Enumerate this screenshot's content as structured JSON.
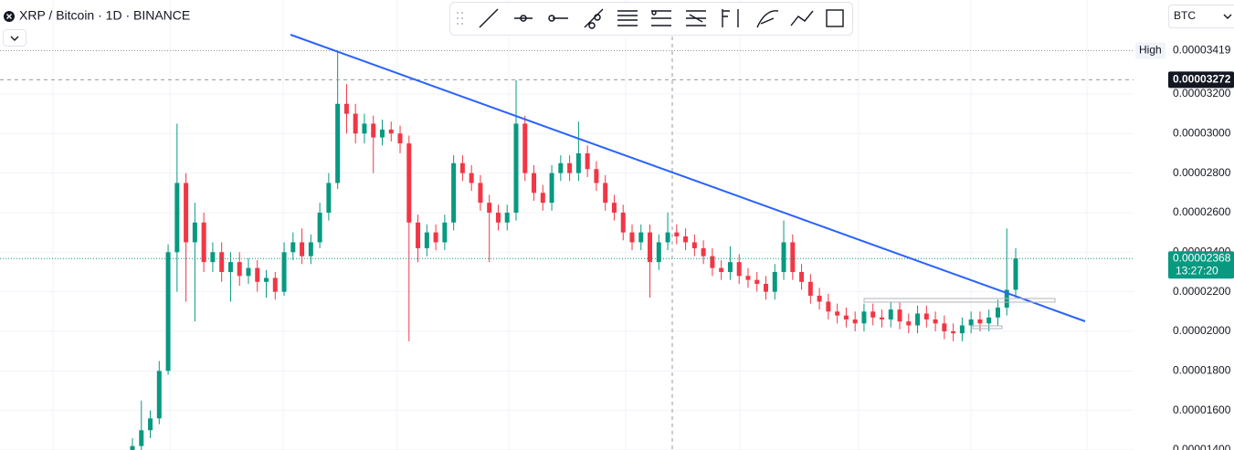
{
  "header": {
    "title": "XRP / Bitcoin · 1D · BINANCE"
  },
  "currency": "BTC",
  "chart_data": {
    "type": "candlestick",
    "open": [
      1.38e-05,
      1.42e-05,
      1.5e-05,
      1.56e-05,
      1.8e-05,
      2.4e-05,
      2.75e-05,
      2.45e-05,
      2.55e-05,
      2.35e-05,
      2.4e-05,
      2.3e-05,
      2.35e-05,
      2.28e-05,
      2.32e-05,
      2.25e-05,
      2.27e-05,
      2.2e-05,
      2.4e-05,
      2.45e-05,
      2.38e-05,
      2.45e-05,
      2.6e-05,
      2.75e-05,
      3.15e-05,
      3.1e-05,
      3e-05,
      3.05e-05,
      2.98e-05,
      3.02e-05,
      3e-05,
      2.95e-05,
      2.55e-05,
      2.42e-05,
      2.5e-05,
      2.45e-05,
      2.55e-05,
      2.85e-05,
      2.8e-05,
      2.75e-05,
      2.65e-05,
      2.6e-05,
      2.55e-05,
      2.6e-05,
      3.05e-05,
      2.8e-05,
      2.7e-05,
      2.65e-05,
      2.8e-05,
      2.85e-05,
      2.8e-05,
      2.9e-05,
      2.82e-05,
      2.75e-05,
      2.65e-05,
      2.6e-05,
      2.5e-05,
      2.45e-05,
      2.5e-05,
      2.35e-05,
      2.45e-05,
      2.5e-05,
      2.48e-05,
      2.45e-05,
      2.42e-05,
      2.38e-05,
      2.32e-05,
      2.3e-05,
      2.35e-05,
      2.28e-05,
      2.26e-05,
      2.24e-05,
      2.2e-05,
      2.3e-05,
      2.45e-05,
      2.3e-05,
      2.25e-05,
      2.18e-05,
      2.15e-05,
      2.1e-05,
      2.08e-05,
      2.06e-05,
      2.04e-05,
      2.1e-05,
      2.07e-05,
      2.06e-05,
      2.11e-05,
      2.05e-05,
      2.03e-05,
      2.09e-05,
      2.06e-05,
      2.04e-05,
      2e-05,
      1.99e-05,
      2.03e-05,
      2.06e-05,
      2.04e-05,
      2.07e-05,
      2.12e-05,
      2.21e-05
    ],
    "high": [
      1.46e-05,
      1.65e-05,
      1.6e-05,
      1.85e-05,
      2.44e-05,
      3.05e-05,
      2.8e-05,
      2.65e-05,
      2.6e-05,
      2.45e-05,
      2.45e-05,
      2.4e-05,
      2.4e-05,
      2.37e-05,
      2.36e-05,
      2.31e-05,
      2.3e-05,
      2.45e-05,
      2.5e-05,
      2.52e-05,
      2.49e-05,
      2.65e-05,
      2.8e-05,
      3.419e-05,
      3.25e-05,
      3.15e-05,
      3.1e-05,
      3.09e-05,
      3.07e-05,
      3.06e-05,
      3.04e-05,
      2.99e-05,
      2.59e-05,
      2.54e-05,
      2.54e-05,
      2.59e-05,
      2.89e-05,
      2.89e-05,
      2.84e-05,
      2.79e-05,
      2.69e-05,
      2.64e-05,
      2.64e-05,
      3.27e-05,
      3.09e-05,
      2.84e-05,
      2.74e-05,
      2.84e-05,
      2.89e-05,
      2.89e-05,
      3.06e-05,
      2.94e-05,
      2.86e-05,
      2.79e-05,
      2.69e-05,
      2.64e-05,
      2.54e-05,
      2.54e-05,
      2.54e-05,
      2.49e-05,
      2.6e-05,
      2.54e-05,
      2.52e-05,
      2.49e-05,
      2.46e-05,
      2.42e-05,
      2.36e-05,
      2.43e-05,
      2.39e-05,
      2.32e-05,
      2.3e-05,
      2.28e-05,
      2.34e-05,
      2.56e-05,
      2.49e-05,
      2.34e-05,
      2.29e-05,
      2.22e-05,
      2.19e-05,
      2.14e-05,
      2.12e-05,
      2.1e-05,
      2.14e-05,
      2.14e-05,
      2.11e-05,
      2.15e-05,
      2.15e-05,
      2.09e-05,
      2.13e-05,
      2.13e-05,
      2.1e-05,
      2.08e-05,
      2.04e-05,
      2.07e-05,
      2.1e-05,
      2.1e-05,
      2.11e-05,
      2.16e-05,
      2.52e-05,
      2.42e-05
    ],
    "low": [
      1.34e-05,
      1.4e-05,
      1.46e-05,
      1.53e-05,
      1.78e-05,
      2.2e-05,
      2.15e-05,
      2.05e-05,
      2.3e-05,
      2.3e-05,
      2.25e-05,
      2.15e-05,
      2.23e-05,
      2.24e-05,
      2.2e-05,
      2.17e-05,
      2.16e-05,
      2.18e-05,
      2.36e-05,
      2.34e-05,
      2.34e-05,
      2.42e-05,
      2.56e-05,
      2.72e-05,
      3e-05,
      2.95e-05,
      2.95e-05,
      2.8e-05,
      2.94e-05,
      2.96e-05,
      2.9e-05,
      1.95e-05,
      2.35e-05,
      2.38e-05,
      2.41e-05,
      2.41e-05,
      2.51e-05,
      2.76e-05,
      2.71e-05,
      2.61e-05,
      2.35e-05,
      2.51e-05,
      2.51e-05,
      2.56e-05,
      2.76e-05,
      2.66e-05,
      2.61e-05,
      2.61e-05,
      2.76e-05,
      2.76e-05,
      2.76e-05,
      2.78e-05,
      2.71e-05,
      2.61e-05,
      2.56e-05,
      2.46e-05,
      2.41e-05,
      2.41e-05,
      2.17e-05,
      2.31e-05,
      2.41e-05,
      2.44e-05,
      2.41e-05,
      2.38e-05,
      2.34e-05,
      2.28e-05,
      2.26e-05,
      2.26e-05,
      2.24e-05,
      2.22e-05,
      2.2e-05,
      2.16e-05,
      2.16e-05,
      2.26e-05,
      2.26e-05,
      2.21e-05,
      2.14e-05,
      2.11e-05,
      2.06e-05,
      2.04e-05,
      2.02e-05,
      2e-05,
      2e-05,
      2.03e-05,
      2.02e-05,
      2.02e-05,
      2.01e-05,
      1.99e-05,
      1.99e-05,
      2.02e-05,
      2e-05,
      1.96e-05,
      1.95e-05,
      1.95e-05,
      1.99e-05,
      2e-05,
      2e-05,
      2.03e-05,
      2.08e-05,
      2.17e-05
    ],
    "close": [
      1.42e-05,
      1.5e-05,
      1.56e-05,
      1.8e-05,
      2.4e-05,
      2.75e-05,
      2.45e-05,
      2.55e-05,
      2.35e-05,
      2.4e-05,
      2.3e-05,
      2.35e-05,
      2.28e-05,
      2.32e-05,
      2.25e-05,
      2.27e-05,
      2.2e-05,
      2.4e-05,
      2.45e-05,
      2.38e-05,
      2.45e-05,
      2.6e-05,
      2.75e-05,
      3.15e-05,
      3.1e-05,
      3e-05,
      3.05e-05,
      2.98e-05,
      3.02e-05,
      3e-05,
      2.95e-05,
      2.55e-05,
      2.42e-05,
      2.5e-05,
      2.45e-05,
      2.55e-05,
      2.85e-05,
      2.8e-05,
      2.75e-05,
      2.65e-05,
      2.6e-05,
      2.55e-05,
      2.6e-05,
      3.05e-05,
      2.8e-05,
      2.7e-05,
      2.65e-05,
      2.8e-05,
      2.85e-05,
      2.8e-05,
      2.9e-05,
      2.82e-05,
      2.75e-05,
      2.65e-05,
      2.6e-05,
      2.5e-05,
      2.45e-05,
      2.5e-05,
      2.35e-05,
      2.45e-05,
      2.5e-05,
      2.48e-05,
      2.45e-05,
      2.42e-05,
      2.38e-05,
      2.32e-05,
      2.3e-05,
      2.35e-05,
      2.28e-05,
      2.26e-05,
      2.24e-05,
      2.2e-05,
      2.3e-05,
      2.45e-05,
      2.3e-05,
      2.25e-05,
      2.18e-05,
      2.15e-05,
      2.1e-05,
      2.08e-05,
      2.06e-05,
      2.04e-05,
      2.1e-05,
      2.07e-05,
      2.06e-05,
      2.11e-05,
      2.05e-05,
      2.03e-05,
      2.09e-05,
      2.06e-05,
      2.04e-05,
      2e-05,
      1.99e-05,
      2.03e-05,
      2.06e-05,
      2.04e-05,
      2.07e-05,
      2.12e-05,
      2.21e-05,
      2.368e-05
    ],
    "up_color": "#089981",
    "down_color": "#f23645",
    "ylim": [
      1.4e-05,
      3.675e-05
    ],
    "yticks": [
      {
        "value": 3.2e-05,
        "label": "0.00003200"
      },
      {
        "value": 3e-05,
        "label": "0.00003000"
      },
      {
        "value": 2.8e-05,
        "label": "0.00002800"
      },
      {
        "value": 2.6e-05,
        "label": "0.00002600"
      },
      {
        "value": 2.4e-05,
        "label": "0.00002400"
      },
      {
        "value": 2.2e-05,
        "label": "0.00002200"
      },
      {
        "value": 2e-05,
        "label": "0.00002000"
      },
      {
        "value": 1.8e-05,
        "label": "0.00001800"
      },
      {
        "value": 1.6e-05,
        "label": "0.00001600"
      },
      {
        "value": 1.4e-05,
        "label": "0.00001400"
      }
    ],
    "grid": true,
    "badges": {
      "high": {
        "title": "High",
        "value": 3.419e-05,
        "label": "0.00003419"
      },
      "crosshair": {
        "value": 3.272e-05,
        "label": "0.00003272"
      },
      "last": {
        "value": 2.368e-05,
        "label": "0.00002368",
        "countdown": "13:27:20"
      }
    }
  }
}
